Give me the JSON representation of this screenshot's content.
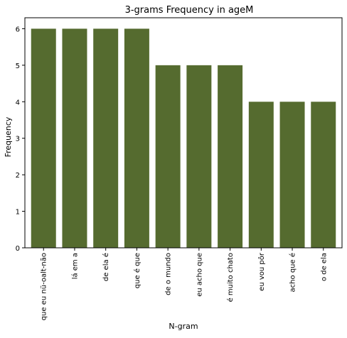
{
  "chart_data": {
    "type": "bar",
    "title": "3-grams Frequency in ageM",
    "xlabel": "N-gram",
    "ylabel": "Frequency",
    "categories": [
      "que eu nü-oalt-não",
      "lá em a",
      "de ela é",
      "que é que",
      "de o mundo",
      "eu acho que",
      "é muito chato",
      "eu vou pôr",
      "acho que é",
      "o de ela"
    ],
    "values": [
      6,
      6,
      6,
      6,
      5,
      5,
      5,
      4,
      4,
      4
    ],
    "ylim": [
      0,
      6.3
    ],
    "yticks": [
      0,
      1,
      2,
      3,
      4,
      5,
      6
    ],
    "grid": false,
    "bar_color": "#556b2f"
  }
}
